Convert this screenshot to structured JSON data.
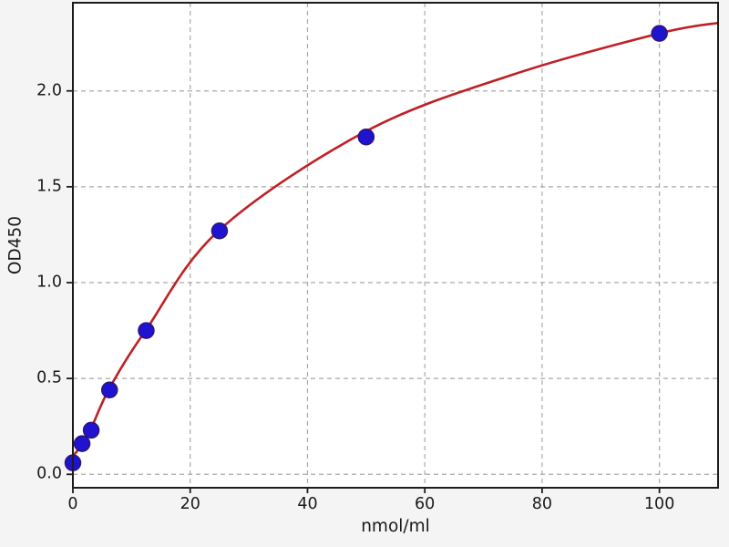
{
  "chart_data": {
    "type": "scatter",
    "title": "",
    "xlabel": "nmol/ml",
    "ylabel": "OD450",
    "xlim": [
      0,
      110
    ],
    "ylim": [
      -0.07,
      2.46
    ],
    "x_ticks": [
      0,
      20,
      40,
      60,
      80,
      100
    ],
    "x_tick_labels": [
      "0",
      "20",
      "40",
      "60",
      "80",
      "100"
    ],
    "y_ticks": [
      0,
      0.5,
      1,
      1.5,
      2
    ],
    "y_tick_labels": [
      "0.0",
      "0.5",
      "1.0",
      "1.5",
      "2.0"
    ],
    "grid": true,
    "grid_style": "dashed",
    "legend": false,
    "series": [
      {
        "name": "standard-points",
        "type": "scatter",
        "x": [
          0,
          1.56,
          3.12,
          6.25,
          12.5,
          25,
          50,
          100
        ],
        "y": [
          0.06,
          0.16,
          0.23,
          0.44,
          0.75,
          1.27,
          1.76,
          2.3
        ],
        "marker": "circle",
        "marker_color": "#1f13cf",
        "marker_edge_color": "#2d1577"
      },
      {
        "name": "fit-curve",
        "type": "line",
        "anchors": [
          [
            0,
            0.095
          ],
          [
            1.56,
            0.155
          ],
          [
            3.12,
            0.24
          ],
          [
            6.25,
            0.45
          ],
          [
            12.5,
            0.755
          ],
          [
            25,
            1.275
          ],
          [
            50,
            1.79
          ],
          [
            75,
            2.085
          ],
          [
            100,
            2.3
          ],
          [
            110,
            2.355
          ]
        ],
        "color": "#bf2026"
      }
    ],
    "colors": {
      "figure_bg": "#f4f4f4",
      "plot_bg": "#ffffff",
      "grid": "#a9a9a9",
      "spine": "#1c1c1c",
      "text": "#1a1a1a"
    }
  }
}
